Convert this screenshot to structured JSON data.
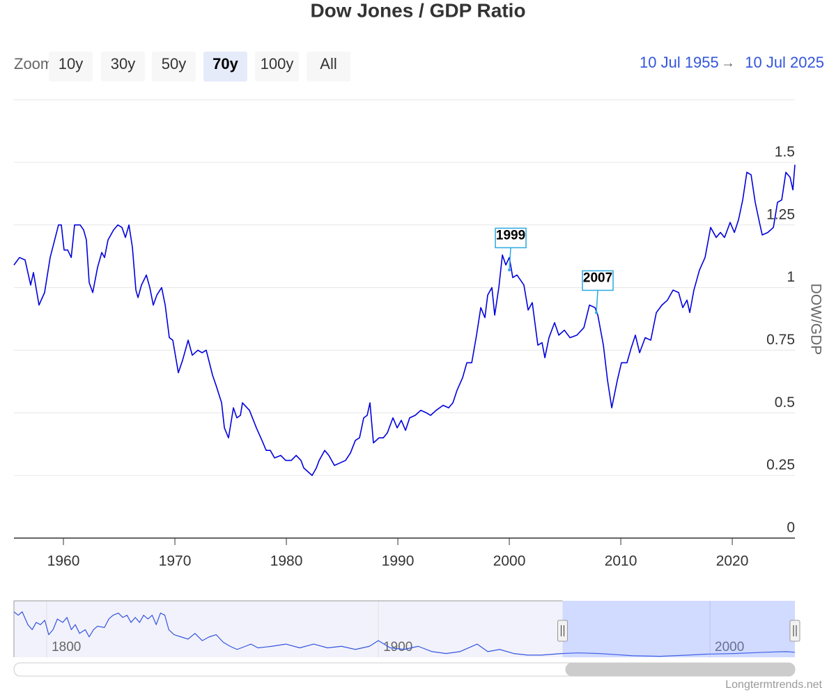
{
  "chart_data": [
    {
      "type": "line",
      "title": "Dow Jones / GDP Ratio",
      "y_label": "DOW/GDP",
      "color": "#0000dd",
      "grid": true,
      "xlim": [
        1955.56,
        2025.62
      ],
      "xticks": [
        1960,
        1970,
        1980,
        1990,
        2000,
        2010,
        2020
      ],
      "ylim": [
        0,
        1.75
      ],
      "yticks": [
        0,
        0.25,
        0.5,
        0.75,
        1,
        1.25,
        1.5
      ],
      "x": [
        1955.56,
        1956.06,
        1956.56,
        1957.06,
        1957.31,
        1957.81,
        1958.31,
        1958.81,
        1959.56,
        1959.81,
        1960.06,
        1960.38,
        1960.7,
        1961.0,
        1961.5,
        1961.81,
        1962.06,
        1962.31,
        1962.63,
        1963.06,
        1963.44,
        1963.69,
        1964.0,
        1964.5,
        1964.88,
        1965.25,
        1965.56,
        1965.88,
        1966.19,
        1966.5,
        1966.69,
        1967.0,
        1967.44,
        1967.75,
        1968.06,
        1968.38,
        1968.81,
        1969.13,
        1969.5,
        1969.81,
        1970.31,
        1970.69,
        1971.19,
        1971.56,
        1972.06,
        1972.44,
        1972.81,
        1973.38,
        1973.69,
        1974.19,
        1974.44,
        1974.81,
        1975.25,
        1975.56,
        1975.88,
        1976.06,
        1976.69,
        1977.31,
        1977.81,
        1978.19,
        1978.56,
        1978.94,
        1979.5,
        1979.94,
        1980.44,
        1980.88,
        1981.31,
        1981.56,
        1982.31,
        1982.69,
        1982.94,
        1983.44,
        1983.81,
        1984.31,
        1984.81,
        1985.31,
        1985.75,
        1986.19,
        1986.56,
        1986.94,
        1987.25,
        1987.5,
        1987.81,
        1988.31,
        1988.69,
        1989.06,
        1989.56,
        1989.94,
        1990.31,
        1990.69,
        1991.06,
        1991.56,
        1992.06,
        1992.56,
        1992.94,
        1993.44,
        1994.06,
        1994.56,
        1994.94,
        1995.31,
        1995.81,
        1996.19,
        1996.63,
        1997.06,
        1997.44,
        1997.81,
        1998.06,
        1998.44,
        1998.69,
        1999.06,
        1999.38,
        1999.69,
        2000.0,
        2000.31,
        2000.69,
        2001.31,
        2001.69,
        2002.06,
        2002.56,
        2002.94,
        2003.19,
        2003.56,
        2004.06,
        2004.44,
        2004.94,
        2005.44,
        2006.06,
        2006.69,
        2007.19,
        2007.69,
        2007.94,
        2008.44,
        2008.81,
        2009.19,
        2009.69,
        2010.06,
        2010.56,
        2010.94,
        2011.31,
        2011.69,
        2012.19,
        2012.69,
        2013.19,
        2013.69,
        2014.19,
        2014.69,
        2015.19,
        2015.56,
        2015.94,
        2016.19,
        2016.56,
        2017.06,
        2017.56,
        2018.06,
        2018.56,
        2018.94,
        2019.31,
        2019.81,
        2020.19,
        2020.56,
        2020.94,
        2021.31,
        2021.69,
        2022.06,
        2022.44,
        2022.69,
        2023.19,
        2023.69,
        2024.06,
        2024.44,
        2024.81,
        2025.19,
        2025.44,
        2025.62
      ],
      "values": [
        1.09,
        1.12,
        1.11,
        1.01,
        1.06,
        0.93,
        0.98,
        1.12,
        1.25,
        1.25,
        1.15,
        1.15,
        1.12,
        1.25,
        1.25,
        1.23,
        1.19,
        1.02,
        0.98,
        1.08,
        1.14,
        1.12,
        1.19,
        1.23,
        1.25,
        1.24,
        1.2,
        1.25,
        1.16,
        0.99,
        0.96,
        1.01,
        1.05,
        1.0,
        0.93,
        0.97,
        1.0,
        0.93,
        0.8,
        0.79,
        0.66,
        0.71,
        0.79,
        0.73,
        0.75,
        0.74,
        0.75,
        0.65,
        0.61,
        0.54,
        0.44,
        0.4,
        0.52,
        0.48,
        0.49,
        0.54,
        0.51,
        0.44,
        0.39,
        0.35,
        0.35,
        0.32,
        0.33,
        0.31,
        0.31,
        0.33,
        0.31,
        0.28,
        0.25,
        0.28,
        0.31,
        0.35,
        0.33,
        0.29,
        0.3,
        0.31,
        0.34,
        0.39,
        0.4,
        0.48,
        0.49,
        0.54,
        0.38,
        0.4,
        0.4,
        0.42,
        0.48,
        0.44,
        0.47,
        0.43,
        0.48,
        0.49,
        0.51,
        0.5,
        0.49,
        0.51,
        0.53,
        0.52,
        0.54,
        0.59,
        0.64,
        0.7,
        0.7,
        0.81,
        0.92,
        0.88,
        0.97,
        1.0,
        0.89,
        1.0,
        1.13,
        1.09,
        1.12,
        1.04,
        1.05,
        1.01,
        0.91,
        0.94,
        0.77,
        0.78,
        0.72,
        0.8,
        0.86,
        0.81,
        0.83,
        0.8,
        0.81,
        0.84,
        0.93,
        0.92,
        0.89,
        0.77,
        0.63,
        0.52,
        0.63,
        0.7,
        0.7,
        0.76,
        0.81,
        0.74,
        0.8,
        0.79,
        0.9,
        0.93,
        0.95,
        0.99,
        0.98,
        0.92,
        0.95,
        0.9,
        0.99,
        1.07,
        1.12,
        1.24,
        1.2,
        1.22,
        1.2,
        1.26,
        1.22,
        1.27,
        1.35,
        1.46,
        1.45,
        1.34,
        1.26,
        1.21,
        1.22,
        1.24,
        1.34,
        1.35,
        1.46,
        1.44,
        1.39,
        1.49
      ],
      "annotations": [
        {
          "text": "1999",
          "x": 2000.0,
          "y": 1.07
        },
        {
          "text": "2007",
          "x": 2007.81,
          "y": 0.9
        }
      ]
    },
    {
      "type": "line",
      "color": "#3355dd",
      "xlim": [
        1790.1,
        2025.62
      ],
      "ylim": [
        0,
        18
      ],
      "xticks": [
        1800,
        1900,
        2000
      ],
      "x": [
        1790.1,
        1791.4,
        1792.6,
        1794.3,
        1795.6,
        1796.8,
        1798.1,
        1799.4,
        1800.6,
        1801.9,
        1803.2,
        1804.8,
        1806.1,
        1807.4,
        1808.6,
        1809.9,
        1811.6,
        1812.8,
        1814.1,
        1815.3,
        1817.4,
        1818.7,
        1820.0,
        1821.6,
        1822.9,
        1824.2,
        1825.4,
        1826.7,
        1828.0,
        1829.2,
        1830.5,
        1831.8,
        1833.0,
        1834.3,
        1835.6,
        1836.8,
        1838.4,
        1840.5,
        1842.6,
        1844.7,
        1846.9,
        1849.0,
        1851.1,
        1853.2,
        1855.3,
        1857.4,
        1859.9,
        1861.6,
        1863.7,
        1867.9,
        1872.1,
        1876.3,
        1880.5,
        1884.7,
        1888.9,
        1893.1,
        1897.3,
        1900.0,
        1903.6,
        1907.8,
        1912.0,
        1916.2,
        1920.4,
        1924.6,
        1929.8,
        1933.0,
        1936.6,
        1940.8,
        1945.0,
        1949.2,
        1955.3,
        1960.3,
        1966.6,
        1976.6,
        1985.0,
        1993.4,
        1999.0,
        2007.4,
        2016.6,
        2022.9,
        2025.62
      ],
      "values": [
        14.5,
        13.4,
        14.5,
        10.4,
        8.8,
        11.1,
        10.4,
        11.8,
        7.2,
        8.8,
        12.2,
        11.1,
        12.7,
        8.8,
        10.4,
        7.6,
        8.8,
        6.5,
        8.8,
        9.9,
        9.5,
        12.2,
        13.4,
        14.1,
        12.7,
        13.4,
        11.1,
        12.7,
        11.1,
        13.4,
        12.2,
        13.4,
        10.4,
        14.1,
        13.4,
        8.8,
        7.2,
        6.5,
        5.8,
        7.6,
        5.3,
        6.5,
        7.2,
        4.8,
        3.5,
        2.5,
        3.5,
        4.2,
        3.0,
        3.5,
        4.2,
        3.0,
        4.2,
        3.0,
        3.5,
        2.5,
        3.5,
        5.3,
        3.0,
        2.5,
        3.5,
        1.8,
        1.2,
        1.8,
        4.2,
        1.8,
        2.5,
        1.2,
        0.7,
        0.7,
        1.2,
        1.4,
        1.2,
        0.5,
        0.3,
        0.7,
        1.0,
        1.2,
        1.6,
        1.8,
        1.6
      ]
    }
  ],
  "range_selector": {
    "label": "Zoom",
    "buttons": [
      "10y",
      "30y",
      "50y",
      "70y",
      "100y",
      "All"
    ],
    "selected": 3,
    "from": "10 Jul 1955",
    "separator": "→",
    "to": "10 Jul 2025"
  },
  "credits": "Longtermtrends.net"
}
